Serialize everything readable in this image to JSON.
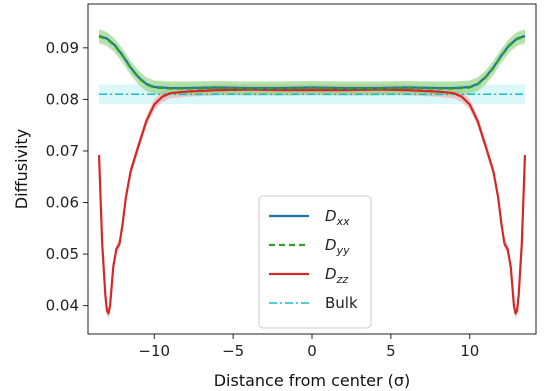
{
  "chart_data": {
    "type": "line",
    "title": "",
    "xlabel": "Distance from center (σ)",
    "ylabel": "Diffusivity",
    "xlim": [
      -14.2,
      14.2
    ],
    "ylim": [
      0.0345,
      0.0985
    ],
    "xticks": [
      -10,
      -5,
      0,
      5,
      10
    ],
    "xtick_labels": [
      "−10",
      "−5",
      "0",
      "5",
      "10"
    ],
    "yticks": [
      0.04,
      0.05,
      0.06,
      0.07,
      0.08,
      0.09
    ],
    "ytick_labels": [
      "0.04",
      "0.05",
      "0.06",
      "0.07",
      "0.08",
      "0.09"
    ],
    "grid": false,
    "legend_position": "lower-center",
    "colors": {
      "Dxx": "#1f6fb4",
      "Dyy": "#2ca02c",
      "Dzz": "#d62728",
      "Bulk": "#17becf",
      "band_green": "#8fd07a",
      "band_red": "#f4a5a5",
      "band_bulk": "#d6f6f8"
    },
    "series": [
      {
        "name": "Dxx",
        "label_base": "D",
        "label_sub": "xx",
        "style": "solid",
        "color": "#1f6fb4",
        "x": [
          -13.5,
          -13.0,
          -12.5,
          -12.0,
          -11.5,
          -11.0,
          -10.5,
          -10.0,
          -9.0,
          -8.0,
          -6.0,
          -4.0,
          -2.0,
          0.0,
          2.0,
          4.0,
          6.0,
          8.0,
          9.0,
          10.0,
          10.5,
          11.0,
          11.5,
          12.0,
          12.5,
          13.0,
          13.5
        ],
        "y": [
          0.0923,
          0.0918,
          0.0905,
          0.0885,
          0.0862,
          0.0843,
          0.083,
          0.0824,
          0.0822,
          0.0822,
          0.0823,
          0.0822,
          0.0822,
          0.0823,
          0.0822,
          0.0822,
          0.0823,
          0.0822,
          0.0822,
          0.0824,
          0.083,
          0.0843,
          0.0862,
          0.0885,
          0.0905,
          0.0918,
          0.0923
        ],
        "band": 0.0012
      },
      {
        "name": "Dyy",
        "label_base": "D",
        "label_sub": "yy",
        "style": "dashed",
        "color": "#2ca02c",
        "x": [
          -13.5,
          -13.0,
          -12.5,
          -12.0,
          -11.5,
          -11.0,
          -10.5,
          -10.0,
          -9.0,
          -8.0,
          -6.0,
          -4.0,
          -2.0,
          0.0,
          2.0,
          4.0,
          6.0,
          8.0,
          9.0,
          10.0,
          10.5,
          11.0,
          11.5,
          12.0,
          12.5,
          13.0,
          13.5
        ],
        "y": [
          0.0922,
          0.0917,
          0.0904,
          0.0884,
          0.0861,
          0.0842,
          0.0829,
          0.0823,
          0.0821,
          0.0821,
          0.0822,
          0.0821,
          0.0821,
          0.0822,
          0.0821,
          0.0821,
          0.0822,
          0.0821,
          0.0821,
          0.0823,
          0.0829,
          0.0842,
          0.0861,
          0.0884,
          0.0904,
          0.0917,
          0.0922
        ],
        "band": 0.0014
      },
      {
        "name": "Dzz",
        "label_base": "D",
        "label_sub": "zz",
        "style": "solid",
        "color": "#d62728",
        "x": [
          -13.5,
          -13.3,
          -13.1,
          -13.0,
          -12.9,
          -12.8,
          -12.6,
          -12.4,
          -12.2,
          -12.0,
          -11.8,
          -11.5,
          -11.0,
          -10.5,
          -10.0,
          -9.5,
          -9.0,
          -8.0,
          -6.0,
          -4.0,
          -2.0,
          0.0,
          2.0,
          4.0,
          6.0,
          8.0,
          9.0,
          9.5,
          10.0,
          10.5,
          11.0,
          11.5,
          11.8,
          12.0,
          12.2,
          12.4,
          12.6,
          12.8,
          12.9,
          13.0,
          13.1,
          13.3,
          13.5
        ],
        "y": [
          0.0692,
          0.052,
          0.042,
          0.039,
          0.0385,
          0.04,
          0.0475,
          0.051,
          0.052,
          0.056,
          0.061,
          0.066,
          0.071,
          0.0758,
          0.079,
          0.0805,
          0.0812,
          0.0815,
          0.0818,
          0.0819,
          0.0818,
          0.0818,
          0.0818,
          0.0819,
          0.0818,
          0.0815,
          0.0812,
          0.0805,
          0.079,
          0.0758,
          0.071,
          0.066,
          0.061,
          0.056,
          0.052,
          0.051,
          0.0475,
          0.04,
          0.0385,
          0.039,
          0.042,
          0.052,
          0.0692
        ],
        "band": 0.001
      },
      {
        "name": "Bulk",
        "label_base": "Bulk",
        "label_sub": "",
        "style": "dashdot",
        "color": "#17becf",
        "x": [
          -13.5,
          13.5
        ],
        "y": [
          0.081,
          0.081
        ],
        "band": 0.0019
      }
    ]
  }
}
